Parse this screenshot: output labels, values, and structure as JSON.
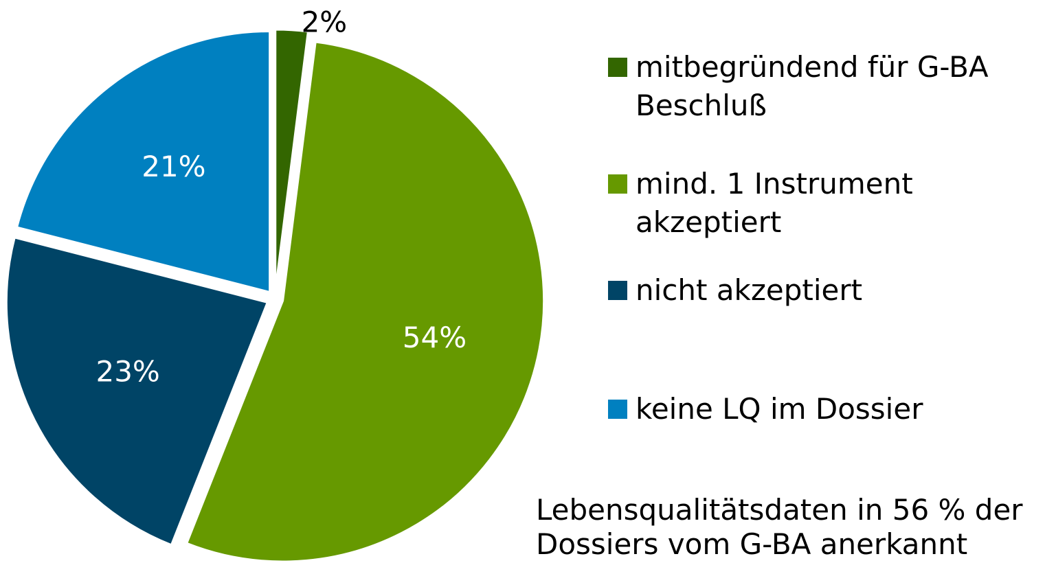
{
  "chart_data": {
    "type": "pie",
    "categories": [
      "mitbegründend für G-BA Beschluß",
      "mind. 1 Instrument akzeptiert",
      "nicht akzeptiert",
      "keine LQ im Dossier"
    ],
    "values": [
      2,
      54,
      23,
      21
    ],
    "value_labels": [
      "2%",
      "54%",
      "23%",
      "21%"
    ],
    "colors": [
      "#336600",
      "#669900",
      "#004466",
      "#0080c0"
    ],
    "label_colors": [
      "#000000",
      "#ffffff",
      "#ffffff",
      "#ffffff"
    ],
    "legend": "right",
    "annotation": [
      "Lebensqualitätsdaten in 56 % der",
      "Dossiers vom G-BA anerkannt"
    ]
  }
}
